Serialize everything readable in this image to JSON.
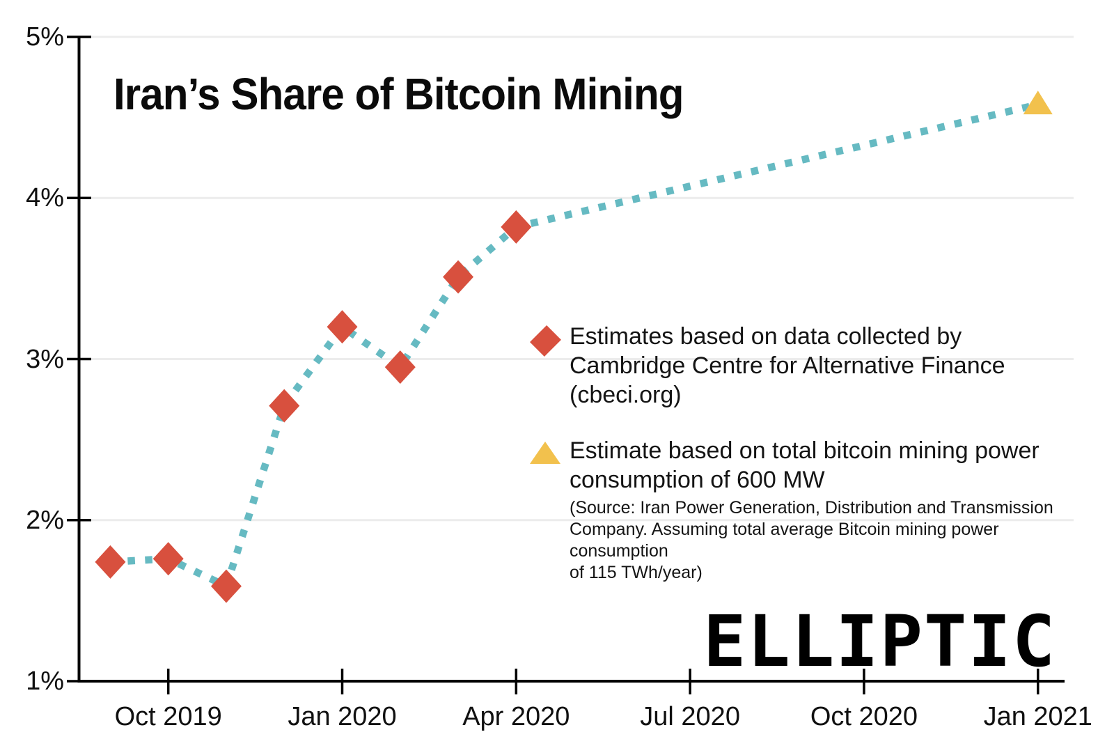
{
  "title": "Iran’s Share of Bitcoin Mining",
  "logo_text": "ELLIPTIC",
  "colors": {
    "diamond_red": "#D8503E",
    "triangle_amber": "#F2C14D",
    "line_teal": "#66BAC2",
    "gridline": "#ECECEC",
    "axis": "#000000"
  },
  "legend": {
    "cbeci_label": "Estimates based on data collected by\nCambridge Centre for Alternative Finance\n(cbeci.org)",
    "mw_label": "Estimate based on total bitcoin mining power\nconsumption of 600 MW",
    "mw_source": "(Source: Iran Power Generation, Distribution and Transmission\nCompany. Assuming total average Bitcoin mining power consumption\nof 115 TWh/year)"
  },
  "chart_data": {
    "type": "line",
    "title": "Iran’s Share of Bitcoin Mining",
    "xlabel": "",
    "ylabel": "",
    "ylim": [
      1,
      5
    ],
    "grid": "horizontal",
    "legend_position": "center-right",
    "line_style": "dotted",
    "line_color": "#66BAC2",
    "y_ticks": [
      {
        "value": 5,
        "label": "5%"
      },
      {
        "value": 4,
        "label": "4%"
      },
      {
        "value": 3,
        "label": "3%"
      },
      {
        "value": 2,
        "label": "2%"
      },
      {
        "value": 1,
        "label": "1%"
      }
    ],
    "x_ticks": [
      {
        "month": 1,
        "label": "Oct 2019"
      },
      {
        "month": 4,
        "label": "Jan 2020"
      },
      {
        "month": 7,
        "label": "Apr 2020"
      },
      {
        "month": 10,
        "label": "Jul 2020"
      },
      {
        "month": 13,
        "label": "Oct 2020"
      },
      {
        "month": 16,
        "label": "Jan 2021"
      }
    ],
    "series": [
      {
        "name": "Estimates based on data collected by Cambridge Centre for Alternative Finance (cbeci.org)",
        "marker": "diamond",
        "color": "#D8503E",
        "points": [
          {
            "x_label": "Sep 2019",
            "month": 0,
            "value_pct": 1.74
          },
          {
            "x_label": "Oct 2019",
            "month": 1,
            "value_pct": 1.76
          },
          {
            "x_label": "Nov 2019",
            "month": 2,
            "value_pct": 1.59
          },
          {
            "x_label": "Dec 2019",
            "month": 3,
            "value_pct": 2.71
          },
          {
            "x_label": "Jan 2020",
            "month": 4,
            "value_pct": 3.2
          },
          {
            "x_label": "Feb 2020",
            "month": 5,
            "value_pct": 2.95
          },
          {
            "x_label": "Mar 2020",
            "month": 6,
            "value_pct": 3.51
          },
          {
            "x_label": "Apr 2020",
            "month": 7,
            "value_pct": 3.82
          }
        ]
      },
      {
        "name": "Estimate based on total bitcoin mining power consumption of 600 MW",
        "marker": "triangle",
        "color": "#F2C14D",
        "points": [
          {
            "x_label": "Jan 2021",
            "month": 16,
            "value_pct": 4.58
          }
        ]
      }
    ]
  }
}
